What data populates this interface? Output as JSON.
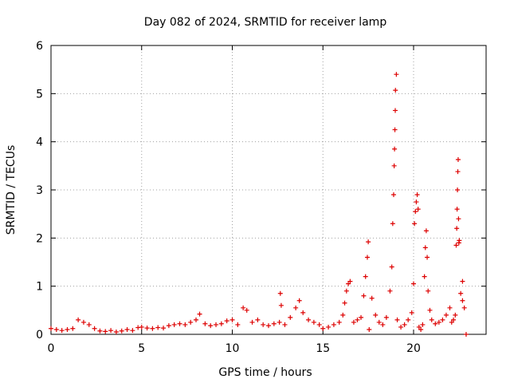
{
  "chart_data": {
    "type": "scatter",
    "title": "Day 082 of 2024, SRMTID for receiver lamp",
    "xlabel": "GPS time / hours",
    "ylabel": "SRMTID / TECUs",
    "xlim": [
      0,
      24
    ],
    "ylim": [
      0,
      6
    ],
    "xticks": [
      0,
      5,
      10,
      15,
      20
    ],
    "yticks": [
      0,
      1,
      2,
      3,
      4,
      5,
      6
    ],
    "grid": true,
    "marker": "+",
    "color": "#dd0000",
    "series": [
      {
        "name": "SRMTID",
        "x": [
          0.0,
          0.3,
          0.6,
          0.9,
          1.2,
          1.5,
          1.8,
          2.1,
          2.4,
          2.7,
          3.0,
          3.3,
          3.6,
          3.9,
          4.2,
          4.5,
          4.8,
          5.0,
          5.3,
          5.6,
          5.9,
          6.2,
          6.5,
          6.8,
          7.1,
          7.4,
          7.7,
          8.0,
          8.2,
          8.5,
          8.8,
          9.1,
          9.4,
          9.7,
          10.0,
          10.3,
          10.6,
          10.8,
          11.1,
          11.4,
          11.7,
          12.0,
          12.3,
          12.6,
          12.65,
          12.7,
          12.9,
          13.2,
          13.5,
          13.7,
          13.9,
          14.2,
          14.5,
          14.8,
          15.0,
          15.3,
          15.6,
          15.9,
          16.1,
          16.2,
          16.3,
          16.4,
          16.5,
          16.7,
          16.9,
          17.1,
          17.25,
          17.35,
          17.45,
          17.5,
          17.55,
          17.7,
          17.9,
          18.1,
          18.3,
          18.5,
          18.7,
          18.8,
          18.85,
          18.9,
          18.93,
          18.95,
          18.97,
          18.99,
          19.0,
          19.05,
          19.1,
          19.3,
          19.5,
          19.7,
          19.9,
          20.0,
          20.05,
          20.1,
          20.15,
          20.2,
          20.25,
          20.3,
          20.4,
          20.5,
          20.6,
          20.65,
          20.7,
          20.75,
          20.8,
          20.9,
          21.0,
          21.2,
          21.4,
          21.6,
          21.8,
          22.0,
          22.1,
          22.2,
          22.3,
          22.35,
          22.38,
          22.4,
          22.42,
          22.44,
          22.46,
          22.48,
          22.5,
          22.52,
          22.6,
          22.7,
          22.8,
          22.9,
          22.7
        ],
        "y": [
          0.12,
          0.1,
          0.08,
          0.1,
          0.12,
          0.3,
          0.25,
          0.2,
          0.12,
          0.07,
          0.06,
          0.08,
          0.05,
          0.07,
          0.1,
          0.08,
          0.14,
          0.15,
          0.13,
          0.12,
          0.14,
          0.13,
          0.18,
          0.2,
          0.22,
          0.2,
          0.25,
          0.3,
          0.42,
          0.22,
          0.18,
          0.2,
          0.22,
          0.28,
          0.3,
          0.2,
          0.55,
          0.5,
          0.25,
          0.3,
          0.2,
          0.18,
          0.22,
          0.25,
          0.85,
          0.6,
          0.2,
          0.35,
          0.55,
          0.7,
          0.45,
          0.3,
          0.25,
          0.2,
          0.12,
          0.15,
          0.2,
          0.25,
          0.4,
          0.65,
          0.9,
          1.05,
          1.1,
          0.25,
          0.3,
          0.35,
          0.8,
          1.2,
          1.6,
          1.92,
          0.1,
          0.75,
          0.4,
          0.25,
          0.2,
          0.35,
          0.9,
          1.4,
          2.3,
          2.9,
          3.5,
          3.85,
          4.25,
          4.65,
          5.07,
          5.4,
          0.3,
          0.15,
          0.2,
          0.3,
          0.45,
          1.05,
          2.3,
          2.55,
          2.75,
          2.9,
          2.6,
          0.15,
          0.1,
          0.2,
          1.2,
          1.8,
          2.15,
          1.6,
          0.9,
          0.5,
          0.3,
          0.22,
          0.25,
          0.3,
          0.4,
          0.55,
          0.25,
          0.3,
          0.4,
          1.85,
          2.2,
          2.6,
          3.0,
          3.38,
          3.63,
          2.4,
          1.9,
          1.95,
          0.85,
          1.1,
          0.55,
          0.0,
          0.7
        ]
      }
    ]
  }
}
